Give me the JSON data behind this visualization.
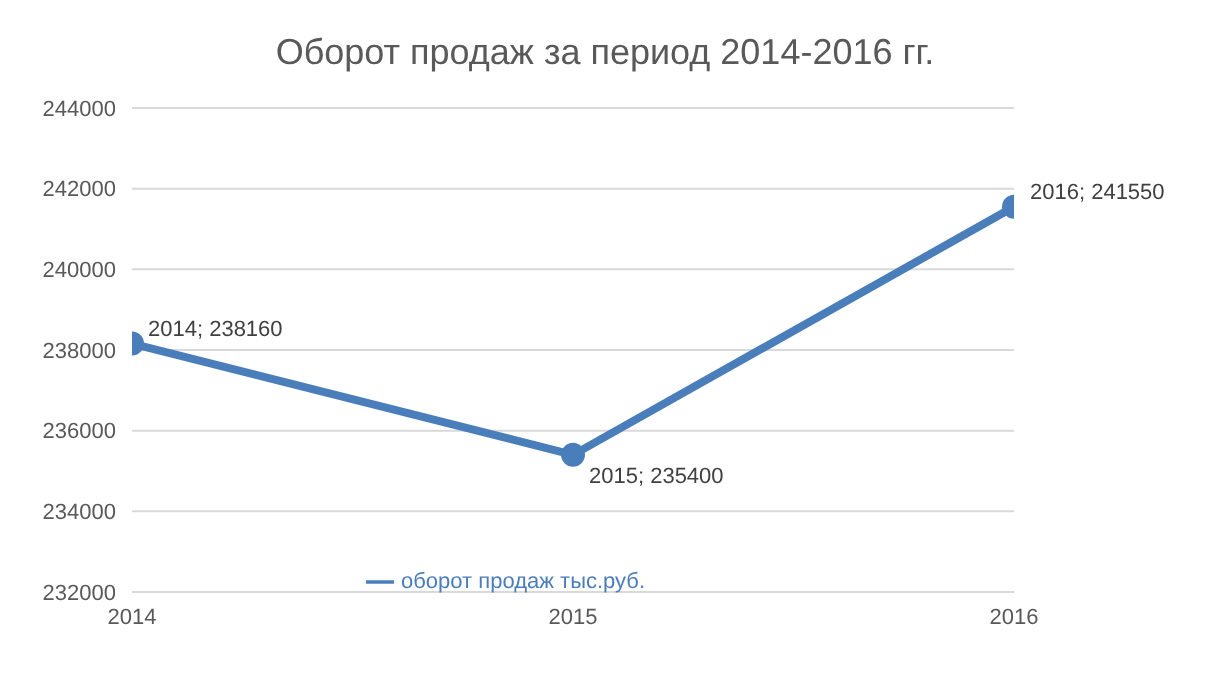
{
  "chart_data": {
    "type": "line",
    "title": "Оборот продаж за период 2014-2016 гг.",
    "categories": [
      "2014",
      "2015",
      "2016"
    ],
    "series": [
      {
        "name": "оборот продаж тыс.руб.",
        "color": "#4a7ebb",
        "values": [
          238160,
          235400,
          241550
        ],
        "value_labels": [
          "2014; 238160",
          "2015; 235400",
          "2016; 241550"
        ]
      }
    ],
    "ylim": [
      232000,
      244000
    ],
    "yticks": [
      232000,
      234000,
      236000,
      238000,
      240000,
      242000,
      244000
    ],
    "grid": "y",
    "legend": "bottom",
    "marker": "circle",
    "line_style": "solid"
  }
}
